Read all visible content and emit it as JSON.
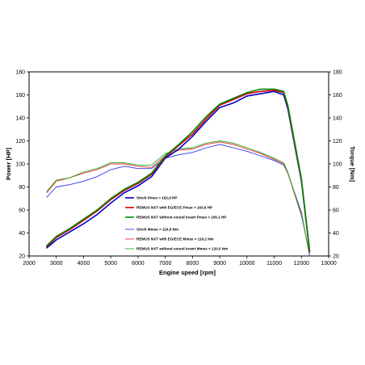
{
  "chart_data": {
    "type": "line",
    "xlabel": "Engine speed [rpm]",
    "ylabel": "Power [HP]",
    "y2label": "Torque [Nm]",
    "xlim": [
      2000,
      13000
    ],
    "ylim": [
      20,
      180
    ],
    "y2lim": [
      20,
      180
    ],
    "xticks": [
      "2000",
      "3000",
      "4000",
      "5000",
      "6000",
      "7000",
      "8000",
      "9000",
      "10000",
      "11000",
      "12000",
      "13000"
    ],
    "yticks": [
      "20",
      "40",
      "60",
      "80",
      "100",
      "120",
      "140",
      "160",
      "180"
    ],
    "y2ticks": [
      "20",
      "40",
      "60",
      "80",
      "100",
      "120",
      "140",
      "160",
      "180"
    ],
    "grid": false,
    "legend_position": "lower-center",
    "series": [
      {
        "name": "Stock Pmax = 162,9 HP",
        "axis": "left",
        "color": "#0000cc",
        "width": 1.6,
        "points": [
          [
            2650,
            27
          ],
          [
            3000,
            34
          ],
          [
            3500,
            41
          ],
          [
            4000,
            48
          ],
          [
            4500,
            56
          ],
          [
            5000,
            66
          ],
          [
            5500,
            75
          ],
          [
            6000,
            81
          ],
          [
            6500,
            89
          ],
          [
            7000,
            105
          ],
          [
            7500,
            113
          ],
          [
            8000,
            124
          ],
          [
            8500,
            137
          ],
          [
            9000,
            149
          ],
          [
            9500,
            153
          ],
          [
            10000,
            159
          ],
          [
            10500,
            161
          ],
          [
            11000,
            163
          ],
          [
            11350,
            160
          ],
          [
            11500,
            148
          ],
          [
            12000,
            85
          ],
          [
            12300,
            24
          ]
        ]
      },
      {
        "name": "REMUS NXT with EG/ECE Pmax = 163,6 HP",
        "axis": "left",
        "color": "#dd0000",
        "width": 1.6,
        "points": [
          [
            2650,
            28
          ],
          [
            3000,
            36
          ],
          [
            3500,
            43
          ],
          [
            4000,
            51
          ],
          [
            4500,
            59
          ],
          [
            5000,
            69
          ],
          [
            5500,
            77
          ],
          [
            6000,
            83
          ],
          [
            6500,
            91
          ],
          [
            7000,
            106
          ],
          [
            7500,
            116
          ],
          [
            8000,
            126
          ],
          [
            8500,
            139
          ],
          [
            9000,
            151
          ],
          [
            9500,
            156
          ],
          [
            10000,
            161
          ],
          [
            10500,
            163
          ],
          [
            11000,
            164
          ],
          [
            11350,
            162
          ],
          [
            11500,
            150
          ],
          [
            12000,
            86
          ],
          [
            12300,
            24
          ]
        ]
      },
      {
        "name": "REMUS NXT without sound insert Pmax = 165,1 HP",
        "axis": "left",
        "color": "#008800",
        "width": 1.6,
        "points": [
          [
            2650,
            29
          ],
          [
            3000,
            37
          ],
          [
            3500,
            44
          ],
          [
            4000,
            52
          ],
          [
            4500,
            60
          ],
          [
            5000,
            70
          ],
          [
            5500,
            78
          ],
          [
            6000,
            84
          ],
          [
            6500,
            92
          ],
          [
            7000,
            107
          ],
          [
            7500,
            117
          ],
          [
            8000,
            128
          ],
          [
            8500,
            141
          ],
          [
            9000,
            152
          ],
          [
            9500,
            157
          ],
          [
            10000,
            162
          ],
          [
            10500,
            165
          ],
          [
            11000,
            165
          ],
          [
            11350,
            163
          ],
          [
            11500,
            151
          ],
          [
            12000,
            87
          ],
          [
            12300,
            25
          ]
        ]
      },
      {
        "name": "Stock Mmax = 116,9 Nm",
        "axis": "right",
        "color": "#3333ee",
        "width": 0.9,
        "points": [
          [
            2650,
            71
          ],
          [
            3000,
            80
          ],
          [
            3500,
            82
          ],
          [
            4000,
            85
          ],
          [
            4500,
            89
          ],
          [
            5000,
            95
          ],
          [
            5500,
            98
          ],
          [
            6000,
            96
          ],
          [
            6500,
            96
          ],
          [
            7000,
            105
          ],
          [
            7500,
            108
          ],
          [
            8000,
            110
          ],
          [
            8500,
            114
          ],
          [
            9000,
            117
          ],
          [
            9500,
            114
          ],
          [
            10000,
            111
          ],
          [
            10500,
            107
          ],
          [
            11000,
            103
          ],
          [
            11350,
            99
          ],
          [
            11500,
            92
          ],
          [
            12000,
            58
          ],
          [
            12300,
            20
          ]
        ]
      },
      {
        "name": "REMUS NXT with EG/ECE Mmax = 119,2 Nm",
        "axis": "right",
        "color": "#ee3333",
        "width": 0.9,
        "points": [
          [
            2650,
            75
          ],
          [
            3000,
            85
          ],
          [
            3500,
            88
          ],
          [
            4000,
            92
          ],
          [
            4500,
            95
          ],
          [
            5000,
            100
          ],
          [
            5500,
            100
          ],
          [
            6000,
            98
          ],
          [
            6500,
            97
          ],
          [
            7000,
            107
          ],
          [
            7500,
            112
          ],
          [
            8000,
            113
          ],
          [
            8500,
            117
          ],
          [
            9000,
            119
          ],
          [
            9500,
            117
          ],
          [
            10000,
            113
          ],
          [
            10500,
            109
          ],
          [
            11000,
            104
          ],
          [
            11350,
            100
          ],
          [
            11500,
            92
          ],
          [
            12000,
            55
          ],
          [
            12300,
            22
          ]
        ]
      },
      {
        "name": "REMUS NXT without sound insert Mmax = 120,0 Nm",
        "axis": "right",
        "color": "#22aa22",
        "width": 0.9,
        "points": [
          [
            2650,
            76
          ],
          [
            3000,
            86
          ],
          [
            3500,
            88
          ],
          [
            4000,
            93
          ],
          [
            4500,
            96
          ],
          [
            5000,
            101
          ],
          [
            5500,
            101
          ],
          [
            6000,
            99
          ],
          [
            6500,
            99
          ],
          [
            7000,
            109
          ],
          [
            7500,
            113
          ],
          [
            8000,
            114
          ],
          [
            8500,
            118
          ],
          [
            9000,
            120
          ],
          [
            9500,
            118
          ],
          [
            10000,
            114
          ],
          [
            10500,
            110
          ],
          [
            11000,
            105
          ],
          [
            11350,
            101
          ],
          [
            11500,
            93
          ],
          [
            12000,
            56
          ],
          [
            12300,
            22
          ]
        ]
      }
    ]
  }
}
